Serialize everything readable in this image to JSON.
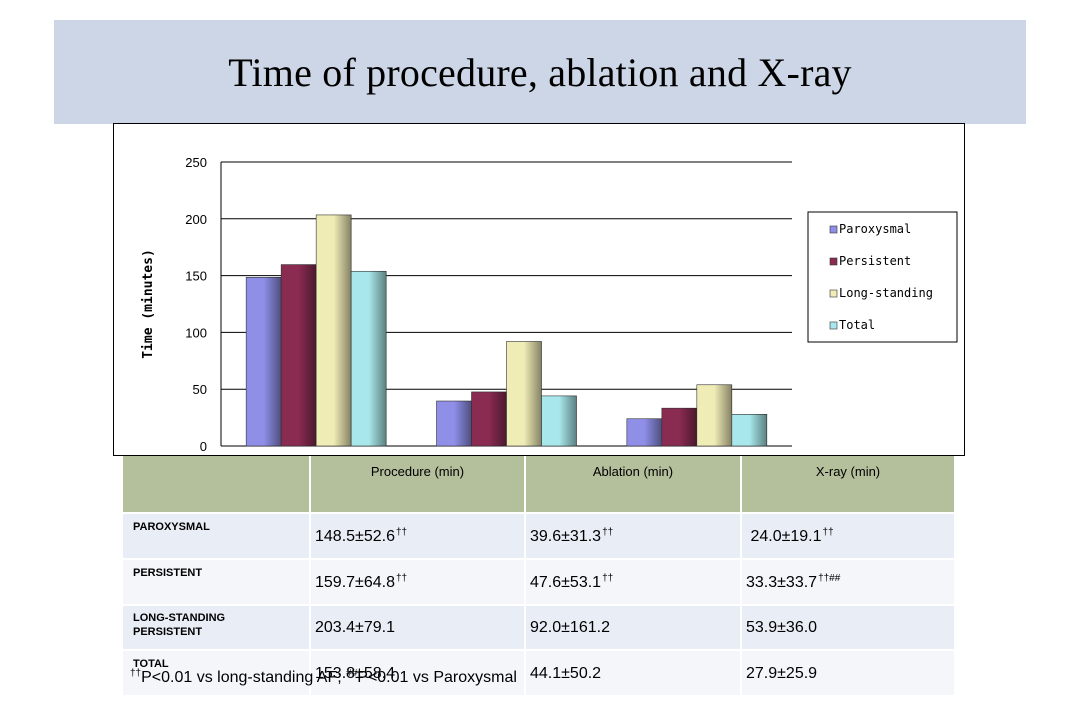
{
  "title": "Time of procedure, ablation and X-ray",
  "chart_data": {
    "type": "bar",
    "categories": [
      "Procedure",
      "Ablation",
      "X-ray"
    ],
    "category_labels_shown": false,
    "ylabel": "Time (minutes)",
    "ylim": [
      0,
      250
    ],
    "yticks": [
      0,
      50,
      100,
      150,
      200,
      250
    ],
    "grid": true,
    "legend_position": "right",
    "series": [
      {
        "name": "Paroxysmal",
        "values": [
          148.5,
          39.6,
          24.0
        ],
        "color": "#8f8fe8"
      },
      {
        "name": "Persistent",
        "values": [
          159.7,
          47.6,
          33.3
        ],
        "color": "#8a2b52"
      },
      {
        "name": "Long-standing",
        "values": [
          203.4,
          92.0,
          53.9
        ],
        "color": "#f0ecb6"
      },
      {
        "name": "Total",
        "values": [
          153.8,
          44.1,
          27.9
        ],
        "color": "#a8e8ec"
      }
    ]
  },
  "table": {
    "headers": [
      "",
      "Procedure (min)",
      "Ablation (min)",
      "X-ray (min)"
    ],
    "rows": [
      {
        "label": [
          "PAROXYSMAL"
        ],
        "cells": [
          {
            "value": "148.5±52.6",
            "mark": "††"
          },
          {
            "value": "39.6±31.3",
            "mark": "††"
          },
          {
            "value": " 24.0±19.1",
            "mark": "††"
          }
        ]
      },
      {
        "label": [
          "PERSISTENT"
        ],
        "cells": [
          {
            "value": "159.7±64.8",
            "mark": "††"
          },
          {
            "value": "47.6±53.1",
            "mark": "††"
          },
          {
            "value": "33.3±33.7",
            "mark": "††##"
          }
        ]
      },
      {
        "label": [
          "LONG-STANDING",
          "PERSISTENT"
        ],
        "cells": [
          {
            "value": "203.4±79.1",
            "mark": ""
          },
          {
            "value": "92.0±161.2",
            "mark": ""
          },
          {
            "value": "53.9±36.0",
            "mark": ""
          }
        ]
      },
      {
        "label": [
          "TOTAL"
        ],
        "cells": [
          {
            "value": "153.8±58.4",
            "mark": ""
          },
          {
            "value": "44.1±50.2",
            "mark": ""
          },
          {
            "value": "27.9±25.9",
            "mark": ""
          }
        ]
      }
    ]
  },
  "footnote": {
    "mark1": "††",
    "text1": "P<0.01 vs long-standing AF; ",
    "mark2": "##",
    "text2": "P<0.01 vs Paroxysmal"
  }
}
